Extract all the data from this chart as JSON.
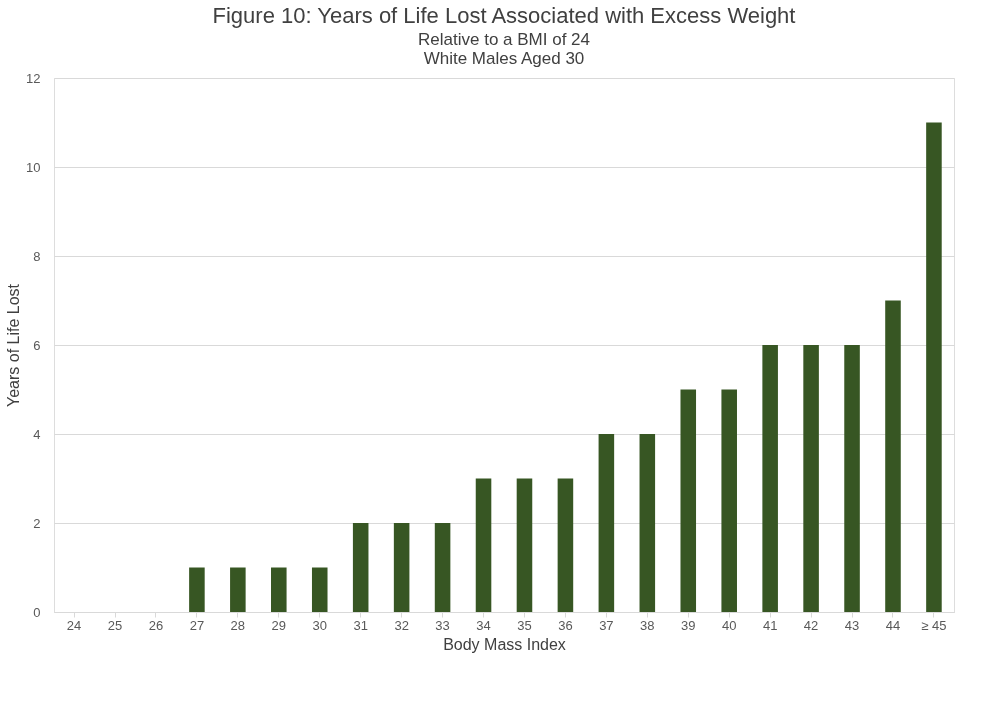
{
  "chart_data": {
    "type": "bar",
    "title": "Figure 10: Years of Life Lost Associated with Excess Weight",
    "subtitle": "Relative to a BMI of 24",
    "annotations": [
      "White Males Aged 30"
    ],
    "xlabel": "Body Mass Index",
    "ylabel": "Years of Life Lost",
    "categories": [
      "24",
      "25",
      "26",
      "27",
      "28",
      "29",
      "30",
      "31",
      "32",
      "33",
      "34",
      "35",
      "36",
      "37",
      "38",
      "39",
      "40",
      "41",
      "42",
      "43",
      "44",
      "≥ 45"
    ],
    "values": [
      0,
      0,
      0,
      1,
      1,
      1,
      1,
      2,
      2,
      2,
      3,
      3,
      3,
      4,
      4,
      5,
      5,
      6,
      6,
      6,
      7,
      11
    ],
    "color": "#375623",
    "ylim": [
      0,
      12
    ],
    "yticks": [
      0,
      2,
      4,
      6,
      8,
      10,
      12
    ],
    "grid": "y"
  }
}
